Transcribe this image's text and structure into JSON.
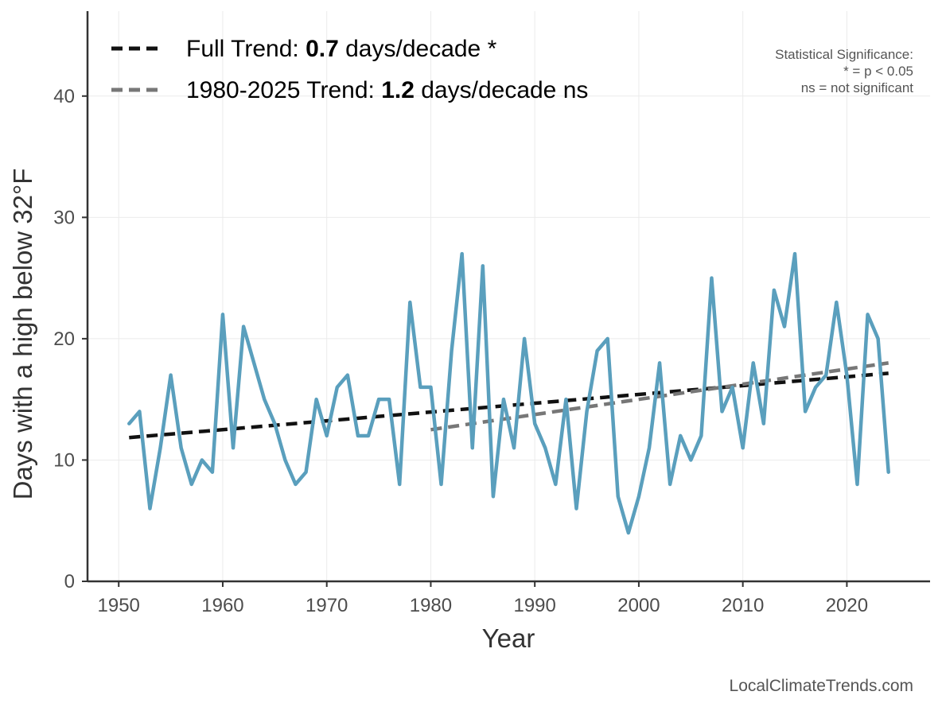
{
  "chart_data": {
    "type": "line",
    "xlabel": "Year",
    "ylabel": "Days with a high below 32°F",
    "xlim": [
      1947,
      2028
    ],
    "ylim": [
      0,
      47
    ],
    "x_ticks": [
      "1950",
      "1960",
      "1970",
      "1980",
      "1990",
      "2000",
      "2010",
      "2020"
    ],
    "y_ticks": [
      "0",
      "10",
      "20",
      "30",
      "40"
    ],
    "grid": true,
    "colors": {
      "series": "#5a9fbd",
      "full_trend": "#111111",
      "recent_trend": "#777777",
      "axis": "#333333",
      "grid": "#ebebeb"
    },
    "series": [
      {
        "name": "Days with a high below 32°F",
        "x": [
          1951,
          1952,
          1953,
          1954,
          1955,
          1956,
          1957,
          1958,
          1959,
          1960,
          1961,
          1962,
          1963,
          1964,
          1965,
          1966,
          1967,
          1968,
          1969,
          1970,
          1971,
          1972,
          1973,
          1974,
          1975,
          1976,
          1977,
          1978,
          1979,
          1980,
          1981,
          1982,
          1983,
          1984,
          1985,
          1986,
          1987,
          1988,
          1989,
          1990,
          1991,
          1992,
          1993,
          1994,
          1995,
          1996,
          1997,
          1998,
          1999,
          2000,
          2001,
          2002,
          2003,
          2004,
          2005,
          2006,
          2007,
          2008,
          2009,
          2010,
          2011,
          2012,
          2013,
          2014,
          2015,
          2016,
          2017,
          2018,
          2019,
          2020,
          2021,
          2022,
          2023,
          2024
        ],
        "values": [
          13,
          14,
          6,
          11,
          17,
          11,
          8,
          10,
          9,
          22,
          11,
          21,
          18,
          15,
          13,
          10,
          8,
          9,
          15,
          12,
          16,
          17,
          12,
          12,
          15,
          15,
          8,
          23,
          16,
          16,
          8,
          19,
          27,
          11,
          26,
          7,
          15,
          11,
          20,
          13,
          11,
          8,
          15,
          6,
          14,
          19,
          20,
          7,
          4,
          7,
          11,
          18,
          8,
          12,
          10,
          12,
          25,
          14,
          16,
          11,
          18,
          13,
          24,
          21,
          27,
          14,
          16,
          17,
          23,
          17,
          8,
          22,
          20,
          9
        ]
      }
    ],
    "trends": [
      {
        "name": "Full Trend",
        "x": [
          1951,
          2024
        ],
        "values": [
          11.85,
          17.15
        ]
      },
      {
        "name": "1980-2025 Trend",
        "x": [
          1980,
          2024
        ],
        "values": [
          12.5,
          18.0
        ]
      }
    ],
    "legend": {
      "position": "top-left",
      "entries": [
        {
          "prefix": "Full Trend: ",
          "value": "0.7",
          "suffix": " days/decade *"
        },
        {
          "prefix": "1980-2025 Trend: ",
          "value": "1.2",
          "suffix": " days/decade ns"
        }
      ]
    },
    "annotations": {
      "significance": [
        "Statistical Significance:",
        "* = p < 0.05",
        "ns = not significant"
      ],
      "credit": "LocalClimateTrends.com"
    }
  }
}
